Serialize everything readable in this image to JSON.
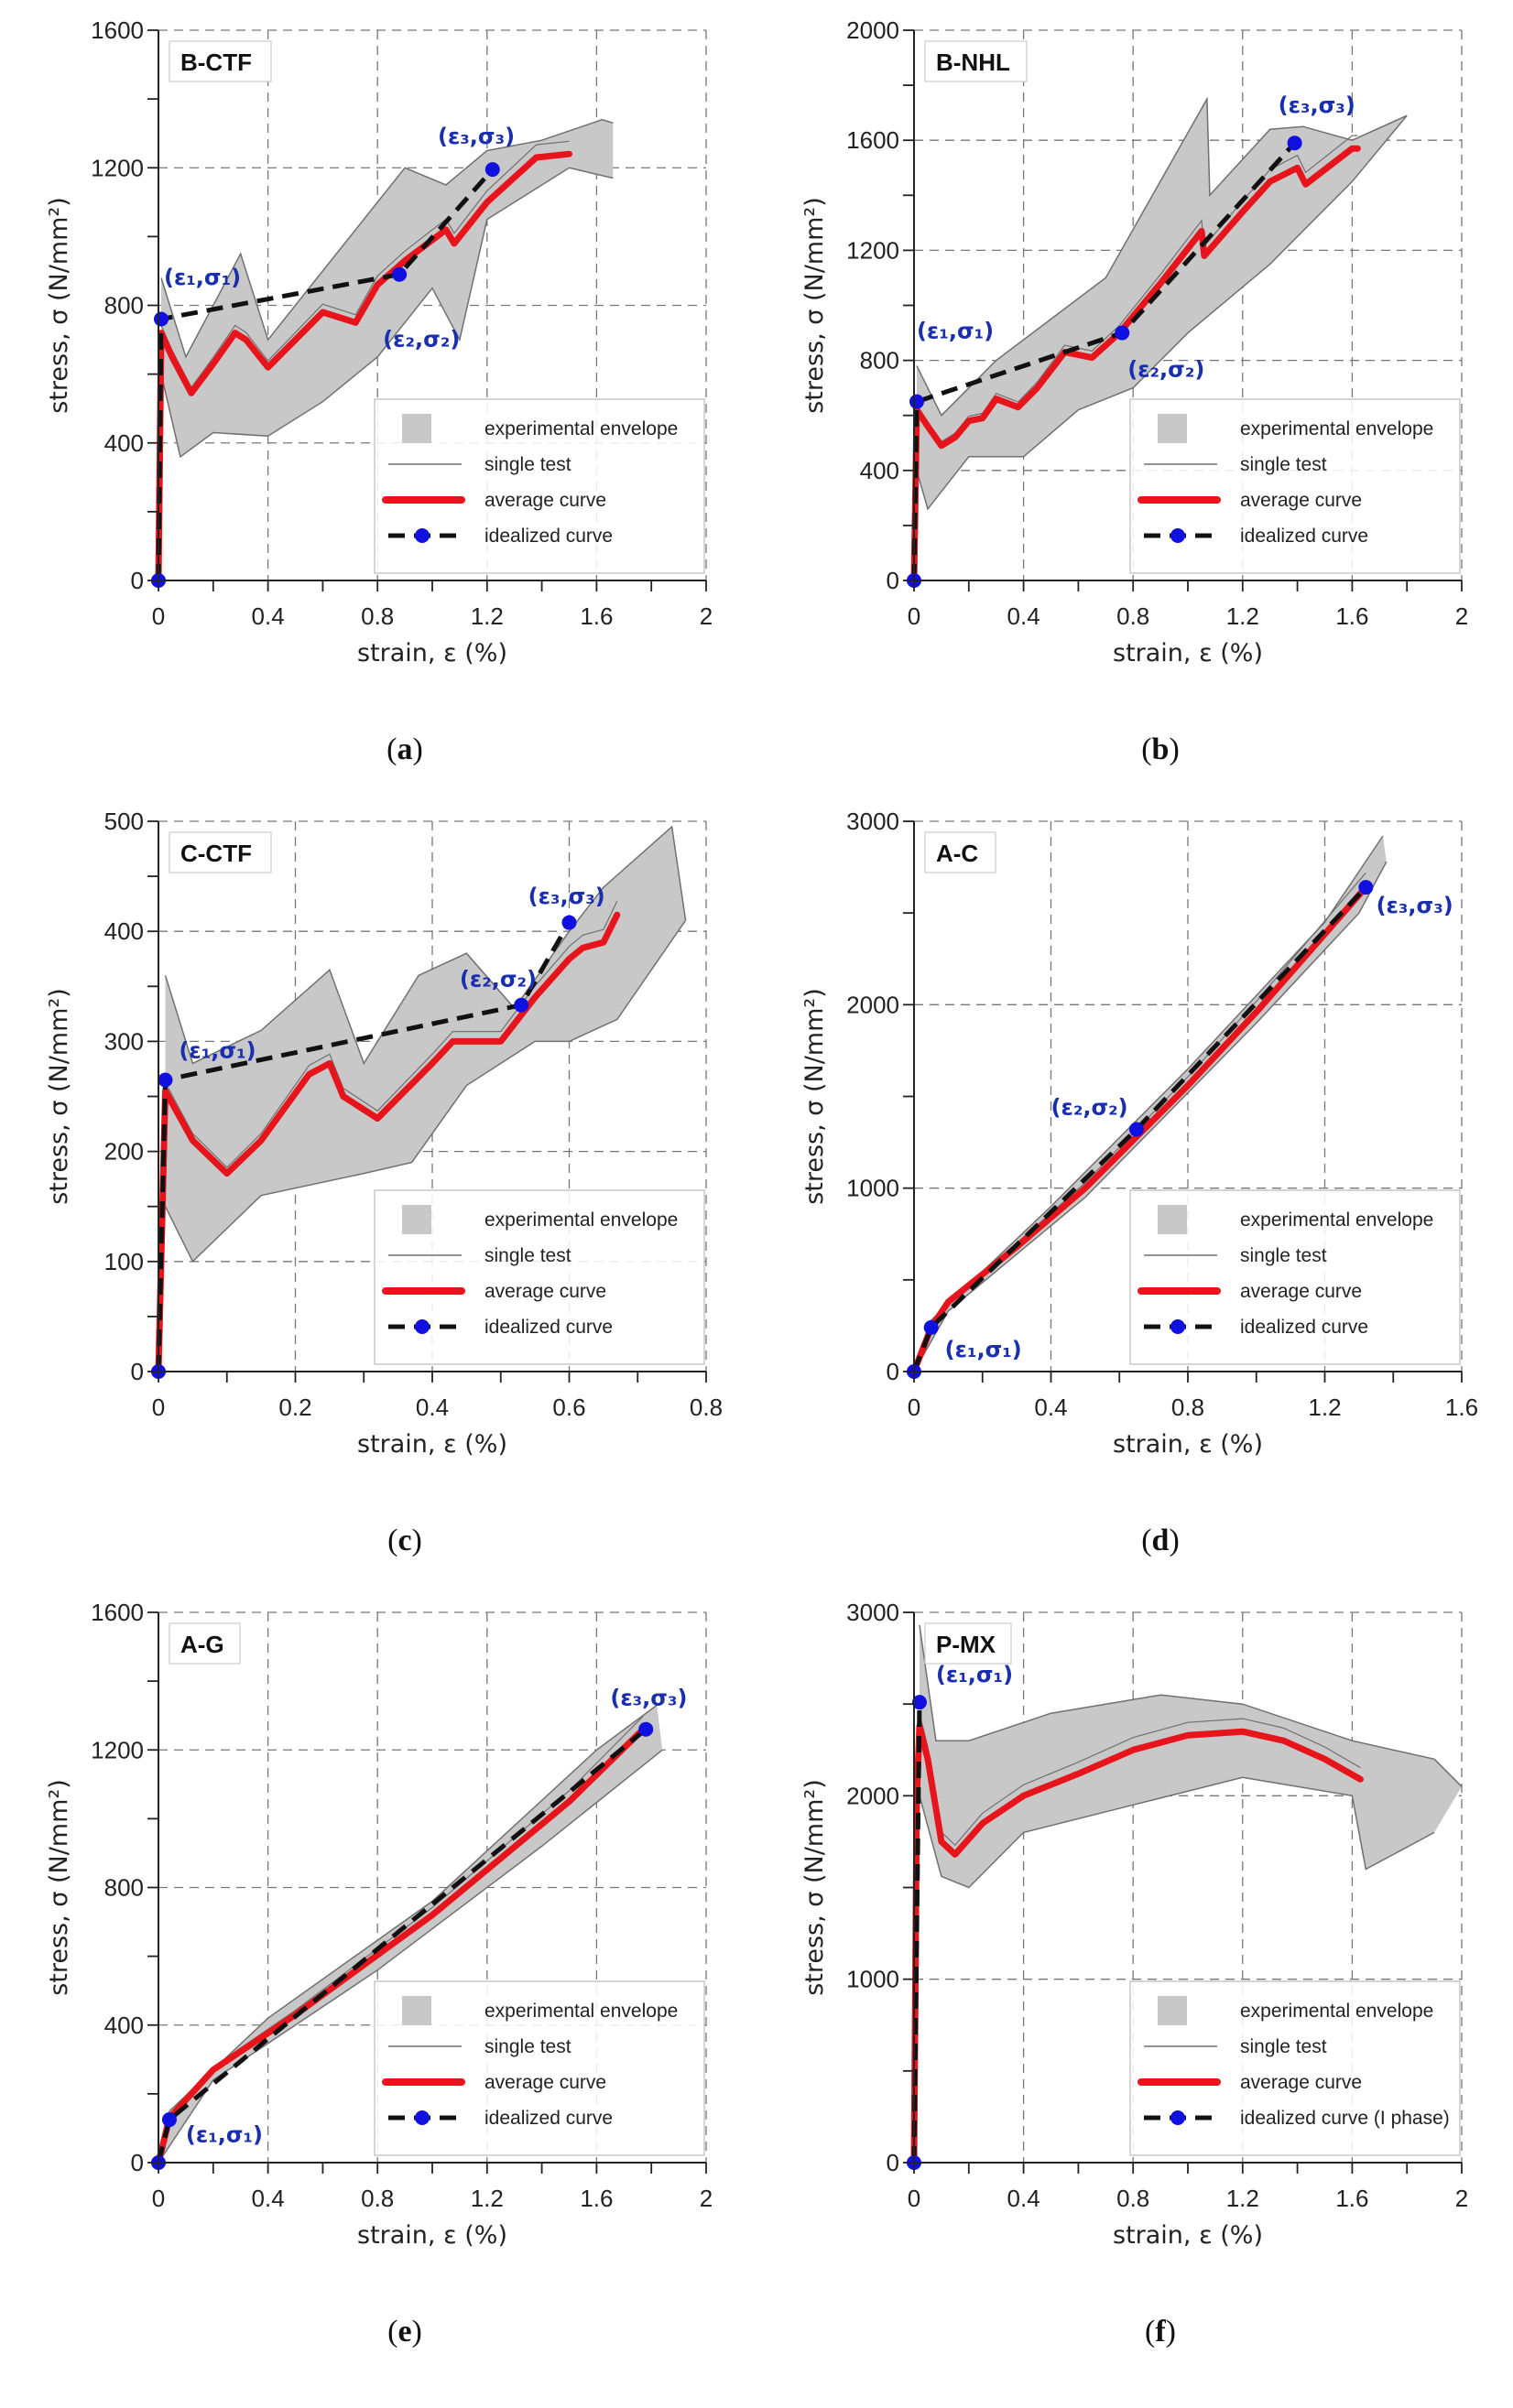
{
  "colors": {
    "average": "#e8141b",
    "idealized": "#111111",
    "point": "#1010e0",
    "envelope": "#c8c8c8",
    "single": "#707070",
    "annotation": "#1a2fb0"
  },
  "chart_data": [
    {
      "type": "line",
      "title": "B-CTF",
      "caption_letter": "a",
      "xlabel": "strain, ε (%)",
      "ylabel": "stress, σ (N/mm²)",
      "xlim": [
        0,
        2
      ],
      "ylim": [
        0,
        1600
      ],
      "xticks": [
        0,
        0.4,
        0.8,
        1.2,
        1.6,
        2
      ],
      "xtick_labels": [
        "0",
        "0.4",
        "0.8",
        "1.2",
        "1.6",
        "2"
      ],
      "xminor": 0.2,
      "yticks": [
        0,
        400,
        800,
        1200,
        1600
      ],
      "ytick_labels": [
        "0",
        "400",
        "800",
        "1200",
        "1600"
      ],
      "yminor": 200,
      "grid": true,
      "legend_position": "bottom-right",
      "legend": [
        "experimental envelope",
        "single test",
        "average curve",
        "idealized curve"
      ],
      "envelope_upper": [
        [
          0.01,
          880
        ],
        [
          0.1,
          650
        ],
        [
          0.3,
          950
        ],
        [
          0.4,
          700
        ],
        [
          0.6,
          900
        ],
        [
          0.9,
          1200
        ],
        [
          1.05,
          1150
        ],
        [
          1.2,
          1250
        ],
        [
          1.4,
          1280
        ],
        [
          1.62,
          1340
        ],
        [
          1.66,
          1330
        ]
      ],
      "envelope_lower": [
        [
          0.01,
          600
        ],
        [
          0.08,
          360
        ],
        [
          0.2,
          430
        ],
        [
          0.4,
          420
        ],
        [
          0.6,
          520
        ],
        [
          0.8,
          650
        ],
        [
          1.0,
          850
        ],
        [
          1.1,
          700
        ],
        [
          1.2,
          1050
        ],
        [
          1.5,
          1200
        ],
        [
          1.66,
          1170
        ]
      ],
      "average": [
        [
          0,
          0
        ],
        [
          0.01,
          720
        ],
        [
          0.05,
          650
        ],
        [
          0.12,
          545
        ],
        [
          0.2,
          630
        ],
        [
          0.28,
          720
        ],
        [
          0.32,
          700
        ],
        [
          0.4,
          620
        ],
        [
          0.5,
          700
        ],
        [
          0.6,
          780
        ],
        [
          0.72,
          750
        ],
        [
          0.8,
          860
        ],
        [
          0.9,
          930
        ],
        [
          1.05,
          1020
        ],
        [
          1.08,
          980
        ],
        [
          1.2,
          1100
        ],
        [
          1.38,
          1230
        ],
        [
          1.5,
          1240
        ]
      ],
      "idealized": [
        [
          0,
          0
        ],
        [
          0.01,
          760
        ],
        [
          0.88,
          890
        ],
        [
          1.22,
          1195
        ]
      ],
      "annotations": [
        {
          "text": "(ε₁,σ₁)",
          "x": 0.02,
          "y": 860
        },
        {
          "text": "(ε₂,σ₂)",
          "x": 0.82,
          "y": 680
        },
        {
          "text": "(ε₃,σ₃)",
          "x": 1.02,
          "y": 1270
        }
      ]
    },
    {
      "type": "line",
      "title": "B-NHL",
      "caption_letter": "b",
      "xlabel": "strain, ε (%)",
      "ylabel": "stress, σ (N/mm²)",
      "xlim": [
        0,
        2
      ],
      "ylim": [
        0,
        2000
      ],
      "xticks": [
        0,
        0.4,
        0.8,
        1.2,
        1.6,
        2
      ],
      "xtick_labels": [
        "0",
        "0.4",
        "0.8",
        "1.2",
        "1.6",
        "2"
      ],
      "xminor": 0.2,
      "yticks": [
        0,
        400,
        800,
        1200,
        1600,
        2000
      ],
      "ytick_labels": [
        "0",
        "400",
        "800",
        "1200",
        "1600",
        "2000"
      ],
      "yminor": 200,
      "grid": true,
      "legend_position": "bottom-right",
      "legend": [
        "experimental envelope",
        "single test",
        "average curve",
        "idealized curve"
      ],
      "envelope_upper": [
        [
          0.01,
          780
        ],
        [
          0.1,
          600
        ],
        [
          0.3,
          800
        ],
        [
          0.5,
          950
        ],
        [
          0.7,
          1100
        ],
        [
          1.07,
          1750
        ],
        [
          1.08,
          1400
        ],
        [
          1.3,
          1640
        ],
        [
          1.42,
          1650
        ],
        [
          1.6,
          1600
        ],
        [
          1.8,
          1690
        ]
      ],
      "envelope_lower": [
        [
          0.01,
          400
        ],
        [
          0.05,
          260
        ],
        [
          0.2,
          450
        ],
        [
          0.4,
          450
        ],
        [
          0.6,
          620
        ],
        [
          0.8,
          700
        ],
        [
          1.0,
          900
        ],
        [
          1.3,
          1150
        ],
        [
          1.6,
          1450
        ],
        [
          1.8,
          1690
        ]
      ],
      "average": [
        [
          0,
          0
        ],
        [
          0.01,
          620
        ],
        [
          0.05,
          560
        ],
        [
          0.1,
          490
        ],
        [
          0.15,
          520
        ],
        [
          0.2,
          580
        ],
        [
          0.25,
          590
        ],
        [
          0.3,
          660
        ],
        [
          0.38,
          630
        ],
        [
          0.45,
          700
        ],
        [
          0.55,
          830
        ],
        [
          0.65,
          810
        ],
        [
          0.75,
          900
        ],
        [
          0.9,
          1080
        ],
        [
          1.05,
          1270
        ],
        [
          1.06,
          1180
        ],
        [
          1.2,
          1340
        ],
        [
          1.3,
          1450
        ],
        [
          1.4,
          1500
        ],
        [
          1.43,
          1440
        ],
        [
          1.6,
          1570
        ],
        [
          1.62,
          1570
        ]
      ],
      "idealized": [
        [
          0,
          0
        ],
        [
          0.01,
          650
        ],
        [
          0.76,
          900
        ],
        [
          1.39,
          1590
        ]
      ],
      "annotations": [
        {
          "text": "(ε₁,σ₁)",
          "x": 0.01,
          "y": 880
        },
        {
          "text": "(ε₂,σ₂)",
          "x": 0.78,
          "y": 740
        },
        {
          "text": "(ε₃,σ₃)",
          "x": 1.33,
          "y": 1700
        }
      ]
    },
    {
      "type": "line",
      "title": "C-CTF",
      "caption_letter": "c",
      "xlabel": "strain, ε (%)",
      "ylabel": "stress, σ (N/mm²)",
      "xlim": [
        0,
        0.8
      ],
      "ylim": [
        0,
        500
      ],
      "xticks": [
        0,
        0.2,
        0.4,
        0.6,
        0.8
      ],
      "xtick_labels": [
        "0",
        "0.2",
        "0.4",
        "0.6",
        "0.8"
      ],
      "xminor": 0.1,
      "yticks": [
        0,
        100,
        200,
        300,
        400,
        500
      ],
      "ytick_labels": [
        "0",
        "100",
        "200",
        "300",
        "400",
        "500"
      ],
      "yminor": 50,
      "grid": true,
      "legend_position": "bottom-right",
      "legend": [
        "experimental envelope",
        "single test",
        "average curve",
        "idealized curve"
      ],
      "envelope_upper": [
        [
          0.01,
          360
        ],
        [
          0.05,
          280
        ],
        [
          0.15,
          310
        ],
        [
          0.25,
          365
        ],
        [
          0.3,
          280
        ],
        [
          0.38,
          360
        ],
        [
          0.45,
          380
        ],
        [
          0.52,
          330
        ],
        [
          0.6,
          400
        ],
        [
          0.65,
          440
        ],
        [
          0.75,
          495
        ],
        [
          0.77,
          410
        ]
      ],
      "envelope_lower": [
        [
          0.01,
          150
        ],
        [
          0.05,
          100
        ],
        [
          0.15,
          160
        ],
        [
          0.3,
          180
        ],
        [
          0.37,
          190
        ],
        [
          0.45,
          260
        ],
        [
          0.55,
          300
        ],
        [
          0.6,
          300
        ],
        [
          0.67,
          320
        ],
        [
          0.77,
          410
        ]
      ],
      "average": [
        [
          0,
          0
        ],
        [
          0.01,
          255
        ],
        [
          0.05,
          210
        ],
        [
          0.1,
          180
        ],
        [
          0.15,
          210
        ],
        [
          0.22,
          270
        ],
        [
          0.25,
          280
        ],
        [
          0.27,
          250
        ],
        [
          0.32,
          230
        ],
        [
          0.4,
          280
        ],
        [
          0.43,
          300
        ],
        [
          0.5,
          300
        ],
        [
          0.55,
          340
        ],
        [
          0.6,
          375
        ],
        [
          0.62,
          385
        ],
        [
          0.65,
          390
        ],
        [
          0.67,
          415
        ]
      ],
      "idealized": [
        [
          0,
          0
        ],
        [
          0.01,
          265
        ],
        [
          0.53,
          333
        ],
        [
          0.6,
          408
        ]
      ],
      "annotations": [
        {
          "text": "(ε₁,σ₁)",
          "x": 0.03,
          "y": 285
        },
        {
          "text": "(ε₂,σ₂)",
          "x": 0.44,
          "y": 350
        },
        {
          "text": "(ε₃,σ₃)",
          "x": 0.54,
          "y": 425
        }
      ]
    },
    {
      "type": "line",
      "title": "A-C",
      "caption_letter": "d",
      "xlabel": "strain, ε (%)",
      "ylabel": "stress, σ (N/mm²)",
      "xlim": [
        0,
        1.6
      ],
      "ylim": [
        0,
        3000
      ],
      "xticks": [
        0,
        0.4,
        0.8,
        1.2,
        1.6
      ],
      "xtick_labels": [
        "0",
        "0.4",
        "0.8",
        "1.2",
        "1.6"
      ],
      "xminor": 0.2,
      "yticks": [
        0,
        1000,
        2000,
        3000
      ],
      "ytick_labels": [
        "0",
        "1000",
        "2000",
        "3000"
      ],
      "yminor": 500,
      "grid": true,
      "legend_position": "bottom-right",
      "legend": [
        "experimental envelope",
        "single test",
        "average curve",
        "idealized curve"
      ],
      "envelope_upper": [
        [
          0,
          0
        ],
        [
          0.05,
          280
        ],
        [
          0.4,
          900
        ],
        [
          0.8,
          1650
        ],
        [
          1.2,
          2450
        ],
        [
          1.37,
          2920
        ]
      ],
      "envelope_lower": [
        [
          0,
          0
        ],
        [
          0.1,
          330
        ],
        [
          0.5,
          950
        ],
        [
          1.0,
          1900
        ],
        [
          1.3,
          2500
        ],
        [
          1.38,
          2780
        ]
      ],
      "average": [
        [
          0,
          0
        ],
        [
          0.05,
          240
        ],
        [
          0.1,
          380
        ],
        [
          0.3,
          680
        ],
        [
          0.5,
          1000
        ],
        [
          0.8,
          1560
        ],
        [
          1.0,
          1960
        ],
        [
          1.32,
          2640
        ]
      ],
      "idealized": [
        [
          0,
          0
        ],
        [
          0.05,
          240
        ],
        [
          0.65,
          1320
        ],
        [
          1.32,
          2640
        ]
      ],
      "annotations": [
        {
          "text": "(ε₁,σ₁)",
          "x": 0.09,
          "y": 80
        },
        {
          "text": "(ε₂,σ₂)",
          "x": 0.4,
          "y": 1400
        },
        {
          "text": "(ε₃,σ₃)",
          "x": 1.35,
          "y": 2500
        }
      ]
    },
    {
      "type": "line",
      "title": "A-G",
      "caption_letter": "e",
      "xlabel": "strain, ε (%)",
      "ylabel": "stress, σ (N/mm²)",
      "xlim": [
        0,
        2
      ],
      "ylim": [
        0,
        1600
      ],
      "xticks": [
        0,
        0.4,
        0.8,
        1.2,
        1.6,
        2
      ],
      "xtick_labels": [
        "0",
        "0.4",
        "0.8",
        "1.2",
        "1.6",
        "2"
      ],
      "xminor": 0.2,
      "yticks": [
        0,
        400,
        800,
        1200,
        1600
      ],
      "ytick_labels": [
        "0",
        "400",
        "800",
        "1200",
        "1600"
      ],
      "yminor": 200,
      "grid": true,
      "legend_position": "bottom-right",
      "legend": [
        "experimental envelope",
        "single test",
        "average curve",
        "idealized curve"
      ],
      "envelope_upper": [
        [
          0,
          0
        ],
        [
          0.04,
          150
        ],
        [
          0.4,
          420
        ],
        [
          1.0,
          760
        ],
        [
          1.6,
          1200
        ],
        [
          1.82,
          1330
        ]
      ],
      "envelope_lower": [
        [
          0,
          0
        ],
        [
          0.2,
          240
        ],
        [
          0.8,
          560
        ],
        [
          1.4,
          920
        ],
        [
          1.84,
          1200
        ]
      ],
      "average": [
        [
          0,
          0
        ],
        [
          0.04,
          130
        ],
        [
          0.2,
          270
        ],
        [
          0.5,
          430
        ],
        [
          1.0,
          720
        ],
        [
          1.5,
          1050
        ],
        [
          1.77,
          1260
        ]
      ],
      "idealized": [
        [
          0,
          0
        ],
        [
          0.04,
          125
        ],
        [
          1.78,
          1260
        ]
      ],
      "annotations": [
        {
          "text": "(ε₁,σ₁)",
          "x": 0.1,
          "y": 60
        },
        {
          "text": "(ε₃,σ₃)",
          "x": 1.65,
          "y": 1330
        }
      ]
    },
    {
      "type": "line",
      "title": "P-MX",
      "caption_letter": "f",
      "xlabel": "strain, ε (%)",
      "ylabel": "stress, σ (N/mm²)",
      "xlim": [
        0,
        2
      ],
      "ylim": [
        0,
        3000
      ],
      "xticks": [
        0,
        0.4,
        0.8,
        1.2,
        1.6,
        2
      ],
      "xtick_labels": [
        "0",
        "0.4",
        "0.8",
        "1.2",
        "1.6",
        "2"
      ],
      "xminor": 0.2,
      "yticks": [
        0,
        1000,
        2000,
        3000
      ],
      "ytick_labels": [
        "0",
        "1000",
        "2000",
        "3000"
      ],
      "yminor": 500,
      "grid": true,
      "legend_position": "bottom-right",
      "legend": [
        "experimental envelope",
        "single test",
        "average curve",
        "idealized curve (I phase)"
      ],
      "envelope_upper": [
        [
          0.02,
          2930
        ],
        [
          0.08,
          2300
        ],
        [
          0.2,
          2300
        ],
        [
          0.5,
          2450
        ],
        [
          0.9,
          2550
        ],
        [
          1.2,
          2500
        ],
        [
          1.6,
          2300
        ],
        [
          1.9,
          2200
        ],
        [
          2.0,
          2050
        ]
      ],
      "envelope_lower": [
        [
          0.02,
          2000
        ],
        [
          0.1,
          1560
        ],
        [
          0.2,
          1500
        ],
        [
          0.4,
          1800
        ],
        [
          0.8,
          1950
        ],
        [
          1.2,
          2100
        ],
        [
          1.6,
          2000
        ],
        [
          1.65,
          1600
        ],
        [
          1.9,
          1800
        ]
      ],
      "average": [
        [
          0,
          0
        ],
        [
          0.01,
          2000
        ],
        [
          0.02,
          2380
        ],
        [
          0.05,
          2200
        ],
        [
          0.1,
          1750
        ],
        [
          0.15,
          1680
        ],
        [
          0.25,
          1850
        ],
        [
          0.4,
          2000
        ],
        [
          0.6,
          2120
        ],
        [
          0.8,
          2250
        ],
        [
          1.0,
          2330
        ],
        [
          1.2,
          2350
        ],
        [
          1.35,
          2300
        ],
        [
          1.5,
          2200
        ],
        [
          1.63,
          2090
        ]
      ],
      "idealized": [
        [
          0,
          0
        ],
        [
          0.02,
          2510
        ]
      ],
      "annotations": [
        {
          "text": "(ε₁,σ₁)",
          "x": 0.08,
          "y": 2620
        }
      ]
    }
  ]
}
